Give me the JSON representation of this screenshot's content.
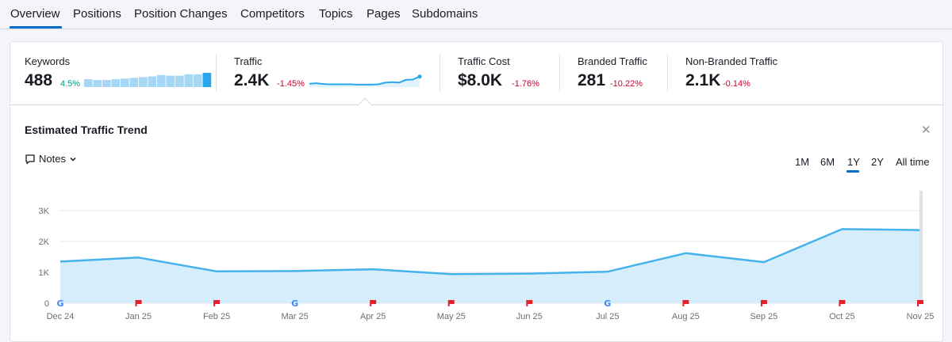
{
  "tabs": [
    {
      "label": "Overview",
      "active": true
    },
    {
      "label": "Positions"
    },
    {
      "label": "Position Changes"
    },
    {
      "label": "Competitors"
    },
    {
      "label": "Topics"
    },
    {
      "label": "Pages"
    },
    {
      "label": "Subdomains"
    }
  ],
  "metrics": {
    "keywords": {
      "label": "Keywords",
      "value": "488",
      "delta": "4.5%"
    },
    "traffic": {
      "label": "Traffic",
      "value": "2.4K",
      "delta": "-1.45%"
    },
    "traffic_cost": {
      "label": "Traffic Cost",
      "value": "$8.0K",
      "delta": "-1.76%"
    },
    "branded": {
      "label": "Branded Traffic",
      "value": "281",
      "delta": "-10.22%"
    },
    "non_branded": {
      "label": "Non-Branded Traffic",
      "value": "2.1K",
      "delta": "-0.14%"
    }
  },
  "keywords_sparkbars": [
    0.55,
    0.5,
    0.5,
    0.55,
    0.6,
    0.65,
    0.7,
    0.75,
    0.85,
    0.8,
    0.8,
    0.9,
    0.9,
    1.0
  ],
  "traffic_sparkline": [
    0.3,
    0.35,
    0.28,
    0.25,
    0.25,
    0.25,
    0.25,
    0.22,
    0.22,
    0.22,
    0.25,
    0.4,
    0.45,
    0.4,
    0.65,
    0.68,
    0.95
  ],
  "trend": {
    "title": "Estimated Traffic Trend",
    "notes_label": "Notes",
    "ranges": [
      "1M",
      "6M",
      "1Y",
      "2Y",
      "All time"
    ],
    "selected_range": "1Y"
  },
  "colors": {
    "accent": "#006dca",
    "line": "#45b2ec",
    "fill": "#d6eefb",
    "pos": "#009f81",
    "neg": "#d1002f"
  },
  "chart_data": {
    "type": "area",
    "title": "Estimated Traffic Trend",
    "x": [
      "Dec 24",
      "Jan 25",
      "Feb 25",
      "Mar 25",
      "Apr 25",
      "May 25",
      "Jun 25",
      "Jul 25",
      "Aug 25",
      "Sep 25",
      "Oct 25",
      "Nov 25"
    ],
    "y_ticks": [
      "0",
      "1K",
      "2K",
      "3K"
    ],
    "ylim": [
      0,
      3000
    ],
    "series": [
      {
        "name": "Traffic",
        "values": [
          1350,
          1480,
          1030,
          1040,
          1100,
          940,
          960,
          1020,
          1620,
          1330,
          2400,
          2370
        ]
      }
    ],
    "markers": [
      "google",
      "flag",
      "flag",
      "google",
      "flag",
      "flag",
      "flag",
      "google",
      "flag",
      "flag",
      "flag",
      "flag"
    ]
  }
}
